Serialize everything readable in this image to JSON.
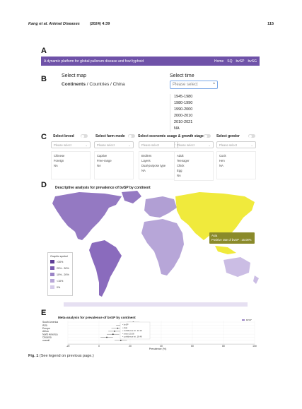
{
  "header": {
    "journal": "Kang et al. Animal Diseases",
    "citation": "(2024) 4:39",
    "page_number": "115"
  },
  "panels": {
    "a": "A",
    "b": "B",
    "c": "C",
    "d": "D",
    "e": "E"
  },
  "banner": {
    "title": "A dynamic platform for global pullorum disease and fowl typhoid",
    "nav": [
      "Home",
      "SQ",
      "bvSP",
      "bvSG"
    ]
  },
  "select_map": {
    "title": "Select map",
    "current": "Continents",
    "rest": " / Countries / China"
  },
  "select_time": {
    "title": "Select time",
    "placeholder": "Please select",
    "options": [
      "1945-1980",
      "1980-1990",
      "1990-2000",
      "2000-2010",
      "2010-2021",
      "NA"
    ]
  },
  "filters": [
    {
      "label": "Select breed",
      "placeholder": "Please select",
      "options": [
        "Chinese",
        "Foreign",
        "NA"
      ]
    },
    {
      "label": "Select farm mode",
      "placeholder": "Please select",
      "options": [
        "Captive",
        "Free-range",
        "NA"
      ]
    },
    {
      "label": "Select economic usage & growth stage",
      "placeholder": "Please select",
      "options": [
        "Broilers",
        "Layers",
        "Dual-purpose type",
        "NA"
      ]
    },
    {
      "label": "",
      "placeholder": "Please select",
      "options": [
        "Adult",
        "Teenager",
        "Chick",
        "Egg",
        "NA"
      ]
    },
    {
      "label": "Select gender",
      "placeholder": "Please select",
      "options": [
        "Cock",
        "Hen",
        "NA"
      ]
    }
  ],
  "map": {
    "title": "Descriptive analysis for prevalence of bvSP by continent",
    "tooltip": {
      "name": "Asia",
      "value": "Positive rate of bvSP : 15.08%"
    },
    "legend_title": "Graphic symbol",
    "legend": [
      {
        "label": ">30%",
        "color": "#5e3e96"
      },
      {
        "label": "20% - 30%",
        "color": "#7a5bb0"
      },
      {
        "label": "10% - 20%",
        "color": "#9b84c6"
      },
      {
        "label": "<10%",
        "color": "#b8a7d8"
      },
      {
        "label": "0%",
        "color": "#d6ccea"
      }
    ],
    "colors": {
      "asia": "#f0ea3c",
      "americas": "#9479c2",
      "europe": "#b19fd4",
      "africa": "#b7a6d8",
      "oceania": "#cbbde4",
      "antarctica": "#e6e0f2"
    }
  },
  "chart_data": {
    "type": "scatter",
    "title": "Meta-analysis for prevalence of bvSP by continent",
    "categories": [
      "South America",
      "Asia",
      "Europe",
      "Africa",
      "North America",
      "Oceania",
      "overall"
    ],
    "values": [
      22,
      15,
      12,
      10,
      9,
      5,
      14
    ],
    "xlabel": "Prevalence (%)",
    "xlim": [
      -20,
      100
    ],
    "xticks": [
      -20,
      0,
      20,
      40,
      60,
      80,
      100
    ],
    "legend": [
      "bvSP"
    ],
    "inset_rows": [
      "bvSP",
      "Asia",
      "confidence int.  12.16",
      "mean  15.08",
      "confidence int.  18.49"
    ]
  },
  "caption": {
    "label": "Fig. 1",
    "text": " (See legend on previous page.)"
  }
}
